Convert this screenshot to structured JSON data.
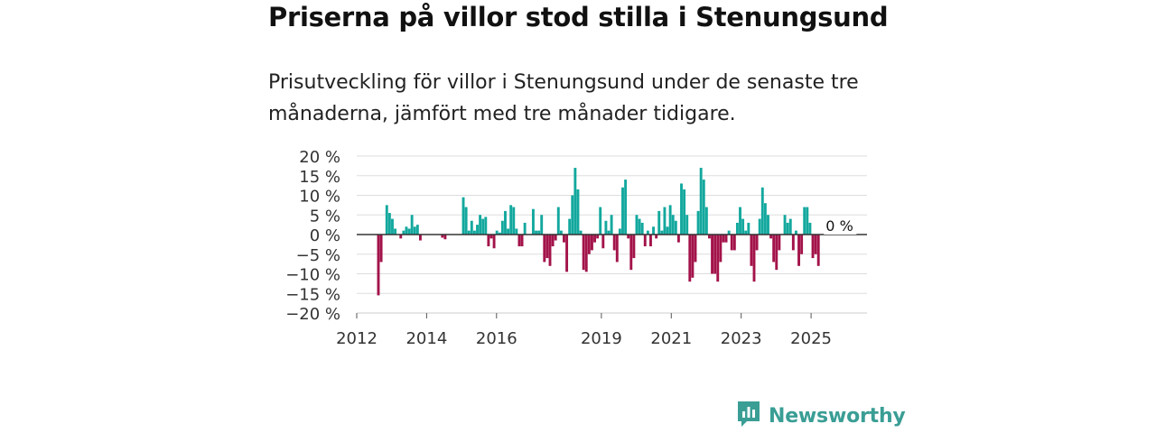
{
  "header": {
    "title": "Priserna på villor stod stilla i Stenungsund",
    "subtitle": "Prisutveckling för villor i Stenungsund under de senaste tre månaderna, jämfört med tre månader tidigare."
  },
  "brand": {
    "name": "Newsworthy",
    "icon": "newsworthy-logo-icon"
  },
  "colors": {
    "positive": "#13a89e",
    "negative": "#a3134a",
    "grid": "#dddddd",
    "zero": "#333333"
  },
  "chart_data": {
    "type": "bar",
    "ylim": [
      -20,
      20
    ],
    "y_ticks": [
      20,
      15,
      10,
      5,
      0,
      -5,
      -10,
      -15,
      -20
    ],
    "y_tick_labels": [
      "20 %",
      "15 %",
      "10 %",
      "5 %",
      "0 %",
      "−5 %",
      "−10 %",
      "−15 %",
      "−20 %"
    ],
    "xlim": [
      2012,
      2026.6
    ],
    "x_ticks": [
      2012,
      2014,
      2016,
      2019,
      2021,
      2023,
      2025
    ],
    "x_tick_labels": [
      "2012",
      "2014",
      "2016",
      "2019",
      "2021",
      "2023",
      "2025"
    ],
    "last_value_label": "0 %",
    "series": [
      {
        "name": "Prisutveckling",
        "points": [
          [
            2012.62,
            -15.5
          ],
          [
            2012.7,
            -7
          ],
          [
            2012.86,
            7.5
          ],
          [
            2012.94,
            5.5
          ],
          [
            2013.02,
            4
          ],
          [
            2013.1,
            1.5
          ],
          [
            2013.26,
            -1
          ],
          [
            2013.34,
            1
          ],
          [
            2013.42,
            2
          ],
          [
            2013.5,
            1.5
          ],
          [
            2013.58,
            5
          ],
          [
            2013.66,
            2
          ],
          [
            2013.74,
            2.5
          ],
          [
            2013.82,
            -1.5
          ],
          [
            2014.45,
            -0.8
          ],
          [
            2014.53,
            -1.2
          ],
          [
            2015.05,
            9.5
          ],
          [
            2015.13,
            7
          ],
          [
            2015.21,
            1
          ],
          [
            2015.29,
            3.5
          ],
          [
            2015.37,
            1
          ],
          [
            2015.45,
            2.5
          ],
          [
            2015.53,
            5
          ],
          [
            2015.61,
            4
          ],
          [
            2015.69,
            4.5
          ],
          [
            2015.77,
            -3
          ],
          [
            2015.85,
            -1
          ],
          [
            2015.93,
            -3.5
          ],
          [
            2016.01,
            1
          ],
          [
            2016.09,
            0.5
          ],
          [
            2016.17,
            3.5
          ],
          [
            2016.25,
            6
          ],
          [
            2016.33,
            1.5
          ],
          [
            2016.41,
            7.5
          ],
          [
            2016.49,
            7
          ],
          [
            2016.57,
            1.5
          ],
          [
            2016.65,
            -3
          ],
          [
            2016.73,
            -3
          ],
          [
            2016.81,
            3
          ],
          [
            2017.05,
            6.5
          ],
          [
            2017.13,
            1
          ],
          [
            2017.21,
            1
          ],
          [
            2017.29,
            5
          ],
          [
            2017.37,
            -7
          ],
          [
            2017.45,
            -6
          ],
          [
            2017.53,
            -8
          ],
          [
            2017.61,
            -3
          ],
          [
            2017.69,
            -1.5
          ],
          [
            2017.77,
            7
          ],
          [
            2017.85,
            1
          ],
          [
            2017.93,
            -2
          ],
          [
            2018.01,
            -9.5
          ],
          [
            2018.09,
            4
          ],
          [
            2018.17,
            10
          ],
          [
            2018.25,
            17
          ],
          [
            2018.33,
            11.5
          ],
          [
            2018.41,
            1
          ],
          [
            2018.49,
            -9
          ],
          [
            2018.57,
            -9.5
          ],
          [
            2018.65,
            -5
          ],
          [
            2018.73,
            -4
          ],
          [
            2018.81,
            -2
          ],
          [
            2018.89,
            -1
          ],
          [
            2018.97,
            7
          ],
          [
            2019.05,
            -3.5
          ],
          [
            2019.13,
            3.5
          ],
          [
            2019.21,
            1
          ],
          [
            2019.29,
            5
          ],
          [
            2019.37,
            -4
          ],
          [
            2019.45,
            -7
          ],
          [
            2019.53,
            1.5
          ],
          [
            2019.61,
            12
          ],
          [
            2019.69,
            14
          ],
          [
            2019.77,
            -1
          ],
          [
            2019.85,
            -9
          ],
          [
            2019.93,
            -6
          ],
          [
            2020.01,
            5
          ],
          [
            2020.09,
            4
          ],
          [
            2020.17,
            3
          ],
          [
            2020.25,
            -3
          ],
          [
            2020.33,
            1
          ],
          [
            2020.41,
            -3
          ],
          [
            2020.49,
            2
          ],
          [
            2020.57,
            -1
          ],
          [
            2020.65,
            6
          ],
          [
            2020.73,
            1
          ],
          [
            2020.81,
            7
          ],
          [
            2020.89,
            2
          ],
          [
            2020.97,
            7.5
          ],
          [
            2021.05,
            5
          ],
          [
            2021.13,
            3.5
          ],
          [
            2021.21,
            -2
          ],
          [
            2021.29,
            13
          ],
          [
            2021.37,
            11.5
          ],
          [
            2021.45,
            5
          ],
          [
            2021.53,
            -12
          ],
          [
            2021.61,
            -11
          ],
          [
            2021.69,
            -7
          ],
          [
            2021.77,
            6
          ],
          [
            2021.85,
            17
          ],
          [
            2021.93,
            14
          ],
          [
            2022.01,
            7
          ],
          [
            2022.09,
            -1
          ],
          [
            2022.17,
            -10
          ],
          [
            2022.25,
            -10
          ],
          [
            2022.33,
            -12
          ],
          [
            2022.41,
            -7
          ],
          [
            2022.49,
            -2
          ],
          [
            2022.57,
            -2
          ],
          [
            2022.65,
            1
          ],
          [
            2022.73,
            -4
          ],
          [
            2022.81,
            -4
          ],
          [
            2022.89,
            3
          ],
          [
            2022.97,
            7
          ],
          [
            2023.05,
            4
          ],
          [
            2023.13,
            1
          ],
          [
            2023.21,
            3
          ],
          [
            2023.29,
            -8
          ],
          [
            2023.37,
            -12
          ],
          [
            2023.45,
            -4
          ],
          [
            2023.53,
            4
          ],
          [
            2023.61,
            12
          ],
          [
            2023.69,
            8
          ],
          [
            2023.77,
            5
          ],
          [
            2023.85,
            -1
          ],
          [
            2023.93,
            -7
          ],
          [
            2024.01,
            -9
          ],
          [
            2024.09,
            -4
          ],
          [
            2024.25,
            5
          ],
          [
            2024.33,
            3
          ],
          [
            2024.41,
            4
          ],
          [
            2024.49,
            -4
          ],
          [
            2024.57,
            1
          ],
          [
            2024.65,
            -8
          ],
          [
            2024.73,
            -5
          ],
          [
            2024.81,
            7
          ],
          [
            2024.89,
            7
          ],
          [
            2024.97,
            3
          ],
          [
            2025.05,
            -6
          ],
          [
            2025.13,
            -5
          ],
          [
            2025.21,
            -8
          ],
          [
            2025.29,
            0
          ]
        ]
      }
    ]
  }
}
